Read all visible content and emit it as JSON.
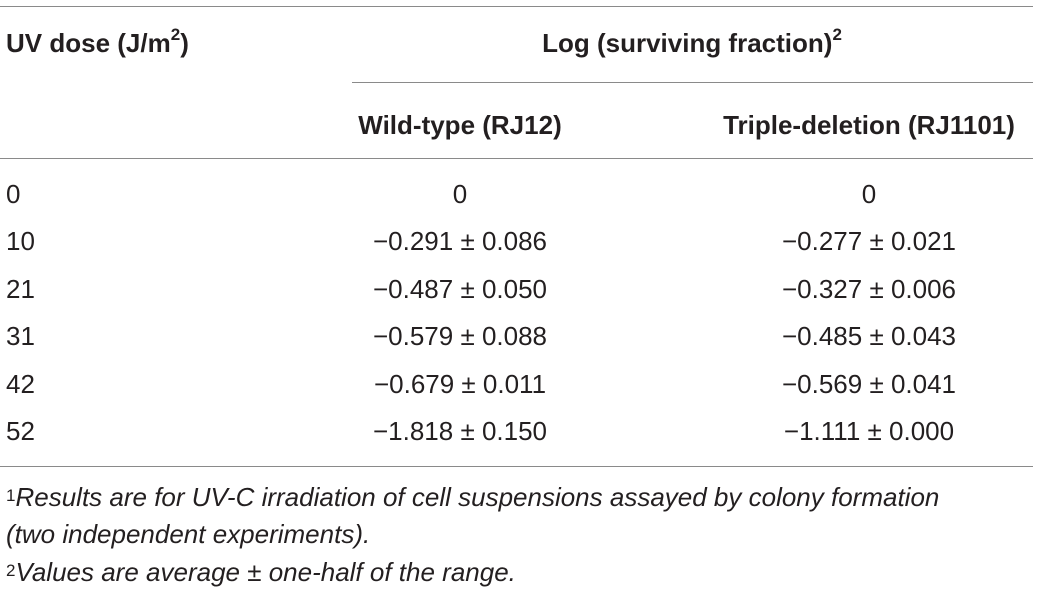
{
  "table": {
    "header": {
      "dose_label": "UV dose (J/m",
      "dose_sup": "2",
      "dose_close": ")",
      "group_label": "Log (surviving fraction)",
      "group_sup": "2",
      "col_wt": "Wild-type (RJ12)",
      "col_td": "Triple-deletion (RJ1101)"
    },
    "rows": [
      {
        "dose": "0",
        "wt": "0",
        "td": "0"
      },
      {
        "dose": "10",
        "wt": "−0.291 ± 0.086",
        "td": "−0.277 ± 0.021"
      },
      {
        "dose": "21",
        "wt": "−0.487 ± 0.050",
        "td": "−0.327 ± 0.006"
      },
      {
        "dose": "31",
        "wt": "−0.579 ± 0.088",
        "td": "−0.485 ± 0.043"
      },
      {
        "dose": "42",
        "wt": "−0.679 ± 0.011",
        "td": "−0.569 ± 0.041"
      },
      {
        "dose": "52",
        "wt": "−1.818 ± 0.150",
        "td": "−1.111 ± 0.000"
      }
    ],
    "footnotes": [
      {
        "mark": "1",
        "line1": "Results are for UV-C irradiation of cell suspensions assayed by colony formation",
        "line2": "(two independent experiments)."
      },
      {
        "mark": "2",
        "line1": "Values are average ± one-half of the range."
      }
    ]
  }
}
